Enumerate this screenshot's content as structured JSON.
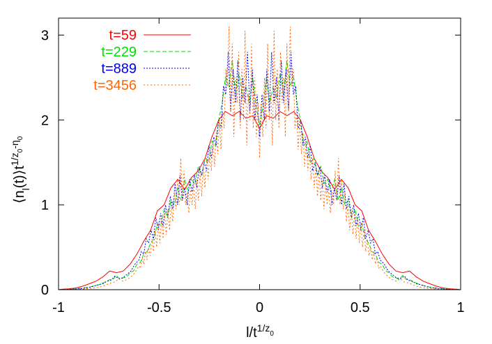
{
  "chart_data": {
    "type": "line",
    "title": "",
    "xlabel": "l/t^{1/z_0}",
    "ylabel": "⟨n_l(t)⟩t^{1/z_0-η_0}",
    "xlim": [
      -1,
      1
    ],
    "ylim": [
      0,
      3.2
    ],
    "x_ticks": [
      {
        "value": -1,
        "label": "-1"
      },
      {
        "value": -0.5,
        "label": "-0.5"
      },
      {
        "value": 0,
        "label": "0"
      },
      {
        "value": 0.5,
        "label": "0.5"
      },
      {
        "value": 1,
        "label": "1"
      }
    ],
    "y_ticks": [
      {
        "value": 0,
        "label": "0"
      },
      {
        "value": 1,
        "label": "1"
      },
      {
        "value": 2,
        "label": "2"
      },
      {
        "value": 3,
        "label": "3"
      }
    ],
    "grid": false,
    "legend_position": "top-left",
    "series": [
      {
        "name": "t=59",
        "color": "#ff0000",
        "dash": "solid",
        "x": [
          0.0,
          0.034,
          0.068,
          0.102,
          0.136,
          0.17,
          0.203,
          0.237,
          0.271,
          0.305,
          0.339,
          0.373,
          0.407,
          0.441,
          0.475,
          0.508,
          0.542,
          0.576,
          0.61,
          0.644,
          0.678,
          0.712,
          0.746,
          0.78,
          0.814,
          0.847,
          0.881,
          0.915,
          0.949,
          0.983,
          1.0
        ],
        "y": [
          1.9,
          2.05,
          2.02,
          2.1,
          2.05,
          2.1,
          2.0,
          1.8,
          1.55,
          1.4,
          1.32,
          1.18,
          1.3,
          1.2,
          1.0,
          0.93,
          0.7,
          0.57,
          0.42,
          0.3,
          0.22,
          0.2,
          0.22,
          0.15,
          0.1,
          0.07,
          0.04,
          0.02,
          0.01,
          0.005,
          0.0
        ]
      },
      {
        "name": "t=229",
        "color": "#00dd00",
        "dash": "6,3",
        "x": [
          0.0,
          0.017,
          0.034,
          0.051,
          0.068,
          0.085,
          0.102,
          0.119,
          0.136,
          0.153,
          0.17,
          0.186,
          0.203,
          0.22,
          0.237,
          0.254,
          0.271,
          0.288,
          0.305,
          0.322,
          0.339,
          0.356,
          0.373,
          0.39,
          0.407,
          0.424,
          0.441,
          0.458,
          0.475,
          0.492,
          0.508,
          0.525,
          0.542,
          0.559,
          0.576,
          0.593,
          0.61,
          0.627,
          0.644,
          0.661,
          0.678,
          0.695,
          0.712,
          0.729,
          0.746,
          0.763,
          0.78,
          0.797,
          0.814,
          0.847,
          0.881,
          0.915,
          0.949,
          0.983,
          1.0
        ],
        "y": [
          1.95,
          2.15,
          2.5,
          2.2,
          2.4,
          2.25,
          2.55,
          2.3,
          2.7,
          2.4,
          2.5,
          2.2,
          2.0,
          1.7,
          1.75,
          1.5,
          1.55,
          1.35,
          1.45,
          1.25,
          1.3,
          1.15,
          1.3,
          1.05,
          1.2,
          1.0,
          1.05,
          0.85,
          0.95,
          0.75,
          0.78,
          0.6,
          0.55,
          0.45,
          0.42,
          0.32,
          0.3,
          0.22,
          0.2,
          0.15,
          0.14,
          0.12,
          0.17,
          0.12,
          0.12,
          0.09,
          0.08,
          0.06,
          0.05,
          0.03,
          0.02,
          0.01,
          0.005,
          0.002,
          0.0
        ]
      },
      {
        "name": "t=889",
        "color": "#0000ee",
        "dash": "2,2",
        "x": [
          0.0,
          0.012,
          0.024,
          0.036,
          0.048,
          0.06,
          0.072,
          0.084,
          0.096,
          0.108,
          0.12,
          0.132,
          0.144,
          0.156,
          0.168,
          0.18,
          0.192,
          0.204,
          0.216,
          0.228,
          0.24,
          0.252,
          0.264,
          0.276,
          0.288,
          0.3,
          0.312,
          0.324,
          0.336,
          0.348,
          0.36,
          0.372,
          0.384,
          0.396,
          0.408,
          0.42,
          0.432,
          0.444,
          0.456,
          0.468,
          0.48,
          0.492,
          0.504,
          0.516,
          0.528,
          0.54,
          0.552,
          0.564,
          0.576,
          0.588,
          0.6,
          0.62,
          0.64,
          0.66,
          0.68,
          0.7,
          0.72,
          0.74,
          0.76,
          0.78,
          0.8,
          0.84,
          0.88,
          0.92,
          0.96,
          1.0
        ],
        "y": [
          1.8,
          2.3,
          2.0,
          2.6,
          2.1,
          2.8,
          2.2,
          2.5,
          2.0,
          2.7,
          2.2,
          2.6,
          2.1,
          2.8,
          2.3,
          2.4,
          1.9,
          2.0,
          1.7,
          1.8,
          1.55,
          1.7,
          1.4,
          1.5,
          1.35,
          1.45,
          1.2,
          1.35,
          1.15,
          1.3,
          1.0,
          1.2,
          1.05,
          1.35,
          1.0,
          1.25,
          0.95,
          1.1,
          0.85,
          1.0,
          0.75,
          0.9,
          0.7,
          0.85,
          0.6,
          0.7,
          0.55,
          0.6,
          0.42,
          0.45,
          0.35,
          0.3,
          0.22,
          0.18,
          0.14,
          0.13,
          0.16,
          0.11,
          0.1,
          0.07,
          0.06,
          0.03,
          0.015,
          0.007,
          0.003,
          0.0
        ]
      },
      {
        "name": "t=3456",
        "color": "#ff6600",
        "dash": "2,3",
        "x": [
          0.0,
          0.008,
          0.016,
          0.024,
          0.032,
          0.04,
          0.048,
          0.056,
          0.064,
          0.072,
          0.08,
          0.088,
          0.096,
          0.104,
          0.112,
          0.12,
          0.128,
          0.136,
          0.144,
          0.152,
          0.16,
          0.168,
          0.176,
          0.184,
          0.192,
          0.2,
          0.208,
          0.216,
          0.224,
          0.232,
          0.24,
          0.248,
          0.256,
          0.264,
          0.272,
          0.28,
          0.288,
          0.296,
          0.304,
          0.312,
          0.32,
          0.328,
          0.336,
          0.344,
          0.352,
          0.36,
          0.368,
          0.376,
          0.384,
          0.392,
          0.4,
          0.408,
          0.416,
          0.424,
          0.432,
          0.44,
          0.448,
          0.456,
          0.464,
          0.472,
          0.48,
          0.488,
          0.496,
          0.504,
          0.512,
          0.52,
          0.528,
          0.536,
          0.544,
          0.552,
          0.56,
          0.568,
          0.576,
          0.584,
          0.592,
          0.6,
          0.62,
          0.64,
          0.66,
          0.68,
          0.7,
          0.72,
          0.74,
          0.76,
          0.78,
          0.8,
          0.84,
          0.88,
          0.92,
          0.96,
          1.0
        ],
        "y": [
          1.55,
          2.2,
          1.8,
          2.5,
          1.9,
          2.9,
          2.0,
          2.3,
          1.7,
          3.05,
          2.0,
          2.6,
          1.9,
          2.8,
          2.2,
          2.5,
          1.8,
          2.9,
          2.1,
          3.1,
          2.4,
          2.6,
          1.9,
          2.1,
          1.65,
          2.0,
          1.6,
          1.85,
          1.45,
          1.75,
          1.4,
          1.6,
          1.3,
          1.55,
          1.2,
          1.45,
          1.1,
          1.4,
          1.05,
          1.3,
          0.95,
          1.25,
          1.0,
          1.2,
          0.9,
          1.15,
          1.0,
          1.4,
          1.05,
          1.55,
          1.0,
          1.3,
          0.95,
          1.15,
          0.8,
          1.0,
          0.7,
          0.95,
          0.65,
          0.9,
          0.6,
          0.85,
          0.55,
          0.8,
          0.5,
          0.7,
          0.45,
          0.6,
          0.4,
          0.5,
          0.35,
          0.45,
          0.3,
          0.38,
          0.25,
          0.28,
          0.2,
          0.15,
          0.12,
          0.1,
          0.13,
          0.09,
          0.08,
          0.06,
          0.04,
          0.03,
          0.015,
          0.007,
          0.003,
          0.001,
          0.0
        ]
      }
    ]
  }
}
